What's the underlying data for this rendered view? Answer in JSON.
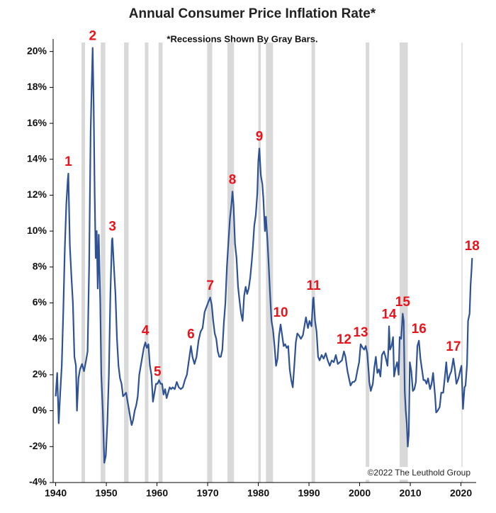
{
  "chart_data": {
    "type": "line",
    "title": "Annual Consumer Price Inflation Rate*",
    "subtitle": "*Recessions Shown By Gray Bars.",
    "credit": "©2022 The Leuthold Group",
    "xlim": [
      1939.5,
      2023
    ],
    "ylim": [
      -4,
      20.5
    ],
    "xticks": [
      1940,
      1950,
      1960,
      1970,
      1980,
      1990,
      2000,
      2010,
      2020
    ],
    "yticks": [
      {
        "value": -4,
        "label": "-4%"
      },
      {
        "value": -2,
        "label": "-2%"
      },
      {
        "value": 0,
        "label": "0%"
      },
      {
        "value": 2,
        "label": "2%"
      },
      {
        "value": 4,
        "label": "4%"
      },
      {
        "value": 6,
        "label": "6%"
      },
      {
        "value": 8,
        "label": "8%"
      },
      {
        "value": 10,
        "label": "10%"
      },
      {
        "value": 12,
        "label": "12%"
      },
      {
        "value": 14,
        "label": "14%"
      },
      {
        "value": 16,
        "label": "16%"
      },
      {
        "value": 18,
        "label": "18%"
      },
      {
        "value": 20,
        "label": "20%"
      }
    ],
    "grid": false,
    "recession_color": "#d9d9d9",
    "recessions": [
      [
        1945.1,
        1945.8
      ],
      [
        1948.9,
        1949.8
      ],
      [
        1953.5,
        1954.4
      ],
      [
        1957.6,
        1958.3
      ],
      [
        1960.3,
        1961.1
      ],
      [
        1969.9,
        1970.9
      ],
      [
        1973.9,
        1975.2
      ],
      [
        1980.0,
        1980.5
      ],
      [
        1981.5,
        1982.9
      ],
      [
        1990.5,
        1991.2
      ],
      [
        2001.2,
        2001.9
      ],
      [
        2007.9,
        2009.5
      ],
      [
        2020.1,
        2020.3
      ]
    ],
    "annotation_color": "#e8141b",
    "annotations": [
      {
        "text": "1",
        "x": 1942.5,
        "y": 13.2
      },
      {
        "text": "2",
        "x": 1947.3,
        "y": 20.2
      },
      {
        "text": "3",
        "x": 1951.2,
        "y": 9.6
      },
      {
        "text": "4",
        "x": 1957.7,
        "y": 3.8
      },
      {
        "text": "5",
        "x": 1960.1,
        "y": 1.5
      },
      {
        "text": "6",
        "x": 1966.7,
        "y": 3.6
      },
      {
        "text": "7",
        "x": 1970.5,
        "y": 6.3
      },
      {
        "text": "8",
        "x": 1974.9,
        "y": 12.2
      },
      {
        "text": "9",
        "x": 1980.2,
        "y": 14.6
      },
      {
        "text": "10",
        "x": 1984.4,
        "y": 4.8
      },
      {
        "text": "11",
        "x": 1990.9,
        "y": 6.3
      },
      {
        "text": "12",
        "x": 1996.9,
        "y": 3.3
      },
      {
        "text": "13",
        "x": 2000.2,
        "y": 3.7
      },
      {
        "text": "14",
        "x": 2005.8,
        "y": 4.7
      },
      {
        "text": "15",
        "x": 2008.5,
        "y": 5.4
      },
      {
        "text": "16",
        "x": 2011.7,
        "y": 3.9
      },
      {
        "text": "17",
        "x": 2018.5,
        "y": 2.9
      },
      {
        "text": "18",
        "x": 2022.2,
        "y": 8.5
      }
    ],
    "x": [
      1940.0,
      1940.3,
      1940.6,
      1940.9,
      1941.2,
      1941.5,
      1941.8,
      1942.1,
      1942.4,
      1942.5,
      1942.8,
      1943.1,
      1943.4,
      1943.7,
      1944.0,
      1944.2,
      1944.5,
      1944.8,
      1945.2,
      1945.6,
      1946.0,
      1946.3,
      1946.6,
      1946.9,
      1947.1,
      1947.3,
      1947.5,
      1947.7,
      1947.9,
      1948.1,
      1948.3,
      1948.5,
      1948.8,
      1949.0,
      1949.3,
      1949.6,
      1949.9,
      1950.2,
      1950.5,
      1950.8,
      1951.1,
      1951.2,
      1951.5,
      1951.8,
      1952.1,
      1952.4,
      1952.7,
      1953.0,
      1953.3,
      1953.6,
      1953.9,
      1954.2,
      1954.5,
      1954.8,
      1955.0,
      1955.3,
      1955.6,
      1955.9,
      1956.2,
      1956.5,
      1956.8,
      1957.1,
      1957.4,
      1957.7,
      1958.0,
      1958.3,
      1958.6,
      1958.9,
      1959.2,
      1959.5,
      1959.8,
      1960.1,
      1960.4,
      1960.7,
      1961.0,
      1961.3,
      1961.6,
      1961.9,
      1962.2,
      1962.5,
      1962.8,
      1963.1,
      1963.5,
      1963.9,
      1964.3,
      1964.7,
      1965.1,
      1965.5,
      1965.9,
      1966.3,
      1966.7,
      1967.0,
      1967.4,
      1967.8,
      1968.2,
      1968.6,
      1969.0,
      1969.4,
      1969.8,
      1970.2,
      1970.5,
      1970.8,
      1971.1,
      1971.4,
      1971.7,
      1972.0,
      1972.3,
      1972.6,
      1972.9,
      1973.2,
      1973.5,
      1973.8,
      1974.1,
      1974.4,
      1974.7,
      1974.9,
      1975.1,
      1975.4,
      1975.7,
      1976.0,
      1976.3,
      1976.6,
      1976.9,
      1977.2,
      1977.5,
      1977.8,
      1978.1,
      1978.4,
      1978.7,
      1978.9,
      1979.2,
      1979.5,
      1979.8,
      1980.0,
      1980.2,
      1980.5,
      1980.8,
      1981.0,
      1981.3,
      1981.5,
      1981.8,
      1982.0,
      1982.3,
      1982.6,
      1982.9,
      1983.2,
      1983.5,
      1983.8,
      1984.1,
      1984.4,
      1984.7,
      1985.0,
      1985.3,
      1985.6,
      1985.9,
      1986.2,
      1986.5,
      1986.8,
      1987.1,
      1987.4,
      1987.7,
      1988.0,
      1988.4,
      1988.8,
      1989.1,
      1989.4,
      1989.8,
      1990.1,
      1990.5,
      1990.8,
      1990.9,
      1991.2,
      1991.5,
      1991.8,
      1992.1,
      1992.5,
      1992.9,
      1993.3,
      1993.7,
      1994.1,
      1994.5,
      1994.9,
      1995.3,
      1995.7,
      1996.1,
      1996.5,
      1996.9,
      1997.2,
      1997.6,
      1997.9,
      1998.2,
      1998.6,
      1998.9,
      1999.2,
      1999.6,
      1999.9,
      2000.2,
      2000.6,
      2000.9,
      2001.2,
      2001.5,
      2001.8,
      2001.9,
      2002.2,
      2002.6,
      2002.9,
      2003.2,
      2003.5,
      2003.8,
      2004.1,
      2004.4,
      2004.8,
      2005.1,
      2005.5,
      2005.7,
      2005.8,
      2006.0,
      2006.3,
      2006.6,
      2006.8,
      2007.1,
      2007.4,
      2007.7,
      2007.9,
      2008.2,
      2008.5,
      2008.7,
      2008.9,
      2009.1,
      2009.3,
      2009.5,
      2009.7,
      2009.9,
      2010.2,
      2010.5,
      2010.8,
      2011.1,
      2011.4,
      2011.7,
      2012.0,
      2012.3,
      2012.6,
      2012.9,
      2013.2,
      2013.5,
      2013.9,
      2014.2,
      2014.5,
      2014.9,
      2015.1,
      2015.4,
      2015.8,
      2016.1,
      2016.5,
      2016.9,
      2017.1,
      2017.4,
      2017.8,
      2018.1,
      2018.5,
      2018.8,
      2019.1,
      2019.5,
      2019.9,
      2020.1,
      2020.4,
      2020.7,
      2020.9,
      2021.2,
      2021.4,
      2021.7,
      2021.9,
      2022.1,
      2022.2
    ],
    "series": [
      {
        "color": "#2e5294",
        "values": [
          0.8,
          2.1,
          -0.7,
          1.0,
          2.5,
          5.5,
          9.0,
          11.5,
          12.9,
          13.2,
          9.2,
          7.5,
          6.0,
          3.0,
          2.5,
          0.0,
          1.8,
          2.3,
          2.6,
          2.2,
          2.8,
          3.3,
          8.0,
          15.5,
          18.0,
          20.2,
          17.0,
          12.0,
          8.5,
          10.0,
          6.8,
          9.8,
          6.0,
          2.0,
          0.0,
          -2.9,
          -2.5,
          -0.7,
          2.0,
          6.5,
          9.5,
          9.6,
          8.0,
          6.5,
          4.0,
          2.5,
          1.8,
          1.5,
          0.8,
          0.9,
          1.0,
          0.5,
          0.0,
          -0.5,
          -0.8,
          -0.5,
          0.0,
          0.3,
          0.8,
          2.0,
          2.5,
          3.0,
          3.5,
          3.8,
          3.5,
          3.7,
          2.5,
          2.0,
          0.5,
          1.0,
          1.5,
          1.5,
          1.7,
          1.5,
          1.5,
          0.9,
          1.2,
          0.7,
          1.0,
          1.3,
          1.2,
          1.3,
          1.2,
          1.6,
          1.3,
          1.2,
          1.3,
          1.7,
          2.0,
          2.8,
          3.6,
          3.0,
          2.6,
          3.0,
          3.9,
          4.4,
          4.6,
          5.5,
          5.8,
          6.1,
          6.3,
          5.9,
          5.0,
          4.3,
          4.0,
          3.3,
          3.0,
          3.0,
          3.4,
          4.9,
          6.0,
          8.0,
          9.4,
          10.7,
          11.5,
          12.2,
          11.5,
          9.3,
          8.5,
          6.9,
          6.1,
          5.4,
          5.0,
          6.4,
          6.9,
          6.5,
          6.8,
          7.4,
          8.3,
          9.0,
          10.3,
          10.9,
          12.1,
          13.9,
          14.6,
          13.1,
          12.6,
          11.8,
          10.0,
          10.8,
          9.5,
          8.4,
          6.6,
          5.0,
          4.5,
          3.6,
          2.5,
          2.9,
          4.2,
          4.8,
          4.2,
          3.6,
          3.7,
          3.5,
          3.6,
          2.3,
          1.7,
          1.3,
          2.5,
          3.8,
          4.3,
          4.2,
          4.0,
          4.2,
          4.7,
          5.2,
          4.6,
          5.0,
          4.7,
          6.2,
          6.3,
          5.0,
          4.4,
          3.0,
          2.8,
          3.1,
          2.9,
          3.2,
          2.8,
          2.5,
          2.8,
          2.7,
          3.1,
          2.6,
          2.7,
          2.8,
          3.3,
          3.0,
          2.2,
          1.8,
          1.4,
          1.6,
          1.6,
          1.7,
          2.3,
          2.7,
          3.7,
          3.5,
          3.4,
          3.6,
          3.2,
          2.1,
          1.6,
          1.1,
          1.5,
          2.4,
          3.0,
          2.1,
          2.3,
          1.9,
          3.1,
          3.3,
          3.0,
          2.5,
          3.6,
          4.7,
          3.4,
          3.6,
          4.1,
          1.9,
          2.4,
          2.7,
          2.0,
          4.1,
          4.0,
          5.4,
          5.0,
          1.1,
          0.0,
          -0.7,
          -2.0,
          -1.3,
          2.7,
          2.2,
          1.1,
          1.2,
          1.6,
          3.6,
          3.9,
          2.9,
          2.3,
          1.7,
          1.7,
          1.5,
          1.8,
          1.2,
          1.5,
          2.1,
          0.8,
          -0.1,
          0.0,
          0.2,
          1.0,
          1.0,
          2.1,
          2.7,
          1.6,
          2.0,
          2.2,
          2.9,
          2.3,
          1.5,
          1.8,
          2.3,
          2.5,
          0.1,
          1.3,
          1.4,
          2.6,
          5.0,
          5.4,
          7.0,
          7.9,
          8.5
        ]
      }
    ]
  }
}
